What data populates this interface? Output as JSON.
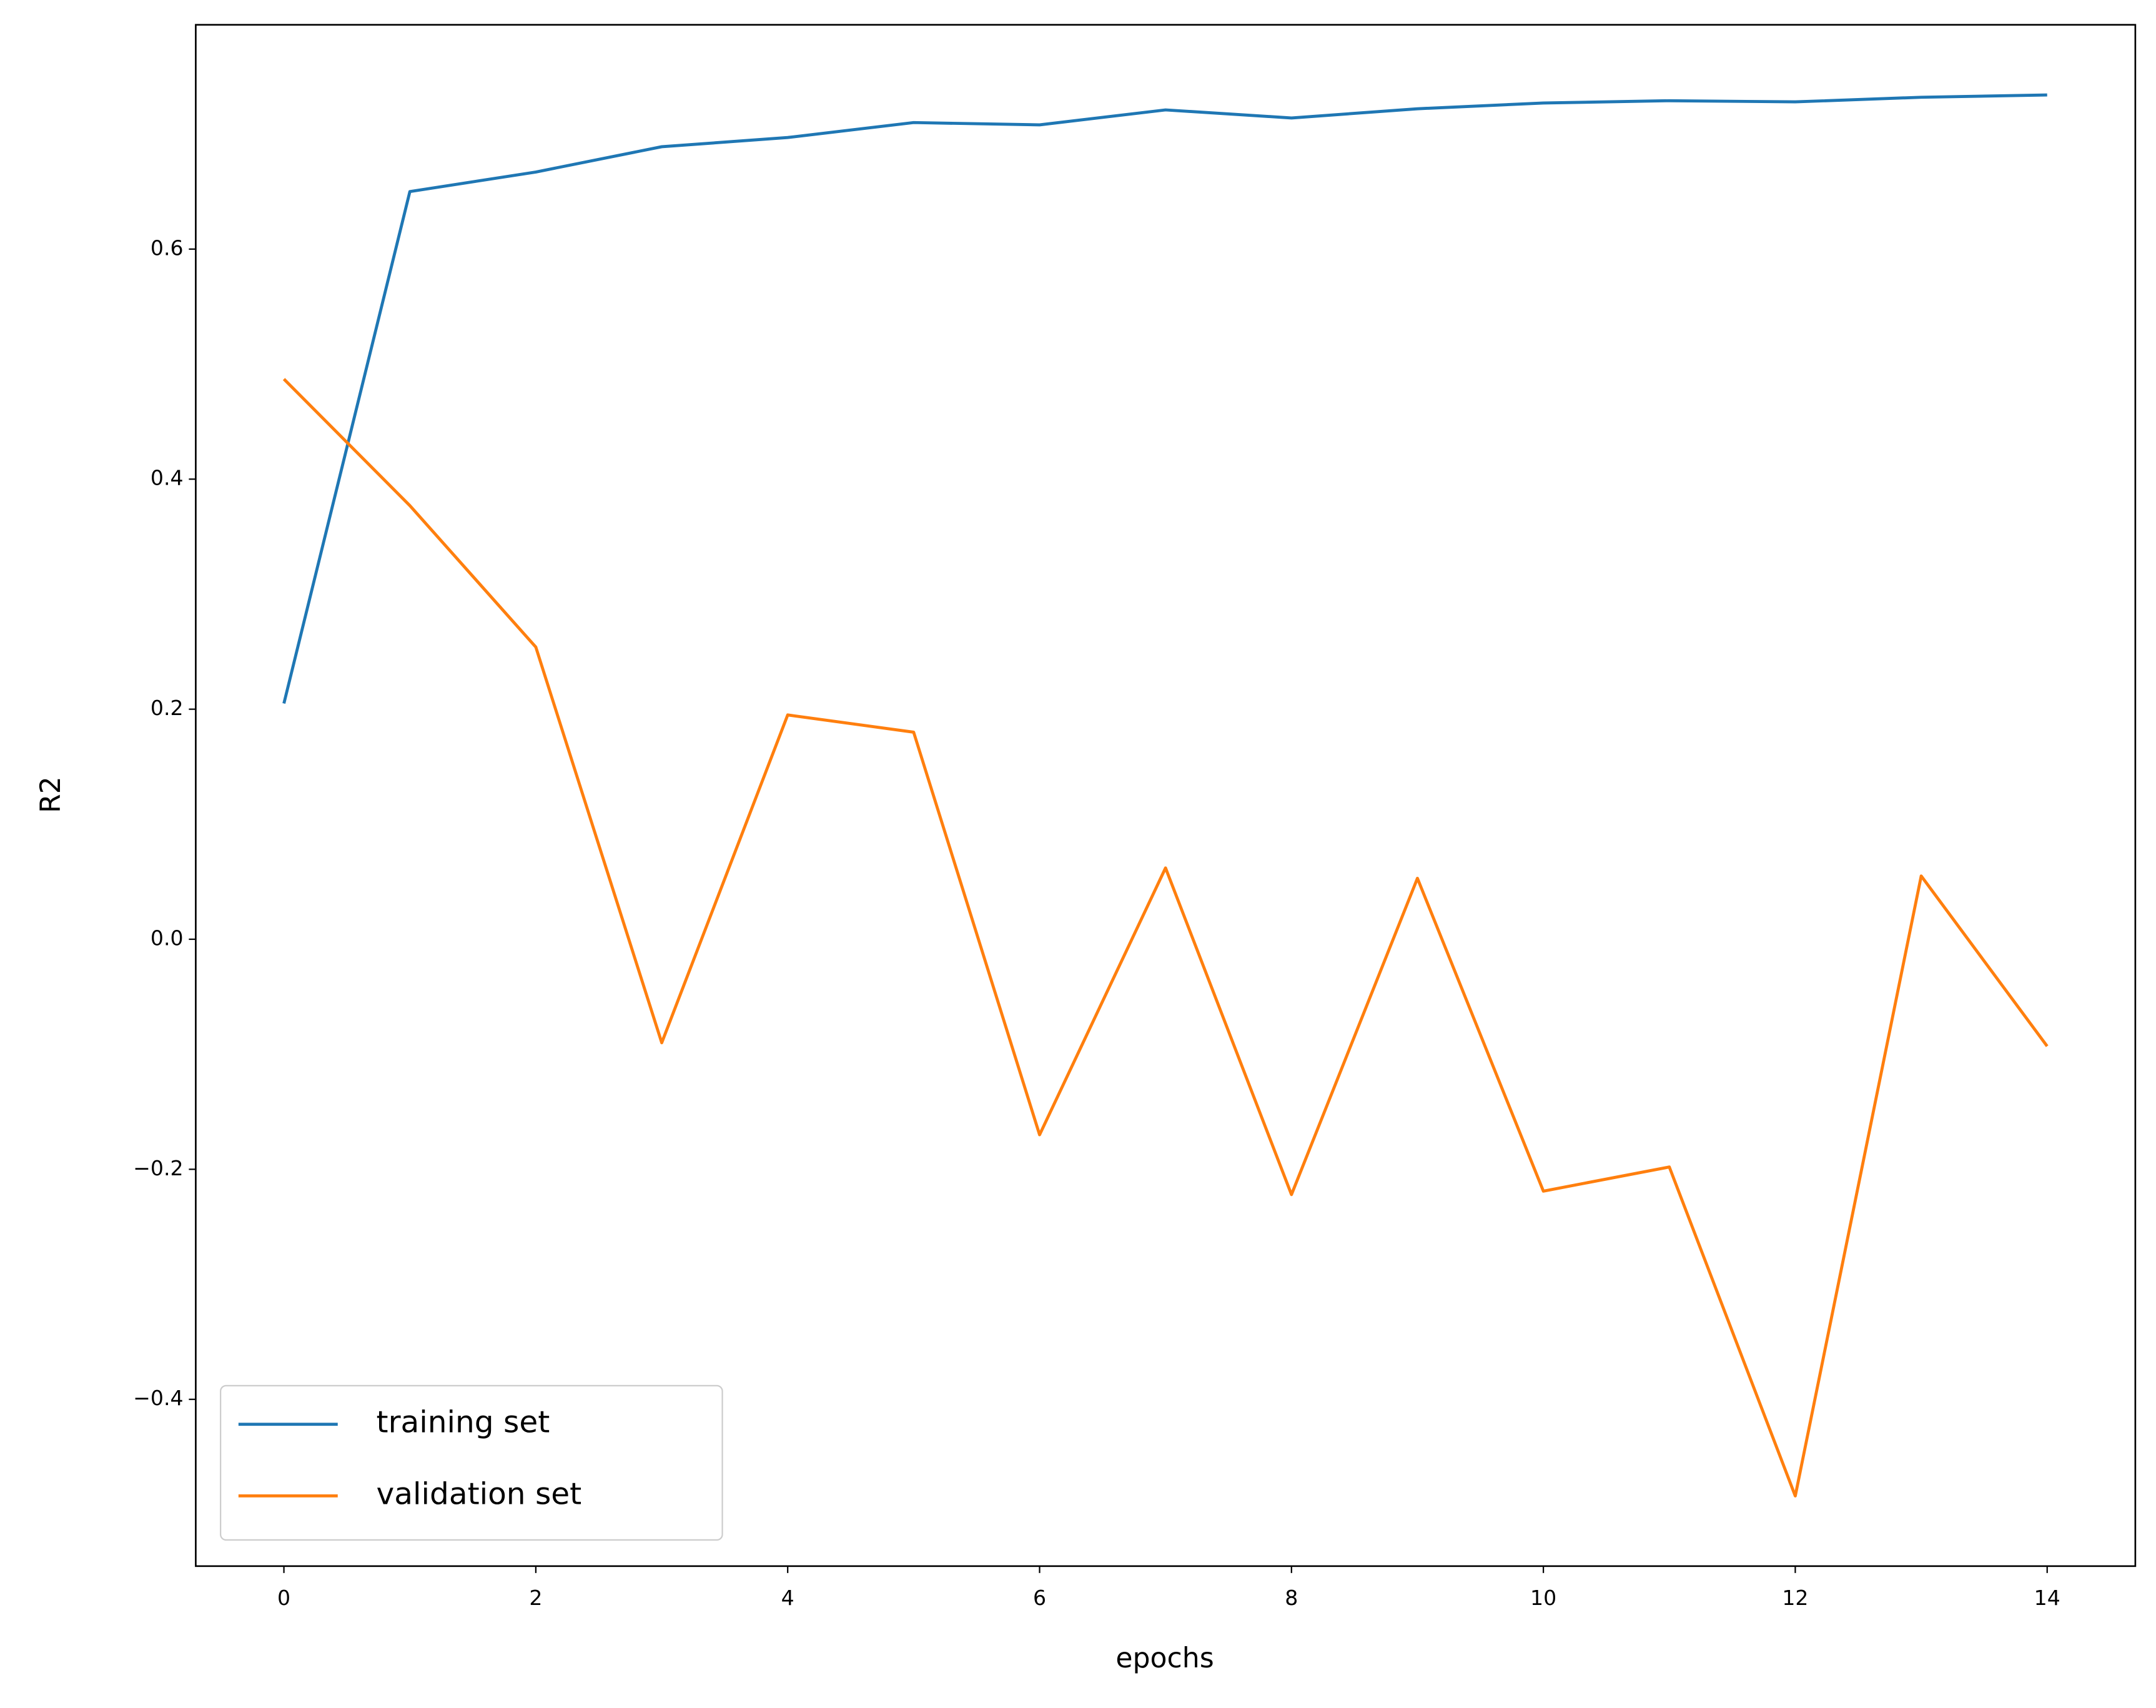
{
  "chart_data": {
    "type": "line",
    "x_label": "epochs",
    "y_label": "R2",
    "x": [
      0,
      1,
      2,
      3,
      4,
      5,
      6,
      7,
      8,
      9,
      10,
      11,
      12,
      13,
      14
    ],
    "series": [
      {
        "name": "training set",
        "color": "#1f77b4",
        "values": [
          0.205,
          0.65,
          0.667,
          0.689,
          0.697,
          0.71,
          0.708,
          0.721,
          0.714,
          0.722,
          0.727,
          0.729,
          0.728,
          0.732,
          0.734
        ]
      },
      {
        "name": "validation set",
        "color": "#ff7f0e",
        "values": [
          0.487,
          0.377,
          0.254,
          -0.09,
          0.195,
          0.18,
          -0.17,
          0.062,
          -0.222,
          0.053,
          -0.219,
          -0.198,
          -0.484,
          0.055,
          -0.093
        ]
      }
    ],
    "xlim": [
      -0.7,
      14.7
    ],
    "ylim": [
      -0.545,
      0.795
    ],
    "xticks": [
      0,
      2,
      4,
      6,
      8,
      10,
      12,
      14
    ],
    "yticks": [
      {
        "value": -0.4,
        "label": "−0.4"
      },
      {
        "value": -0.2,
        "label": "−0.2"
      },
      {
        "value": 0.0,
        "label": "0.0"
      },
      0.2,
      0.4,
      0.6
    ],
    "legend": "lower left",
    "grid": false
  }
}
